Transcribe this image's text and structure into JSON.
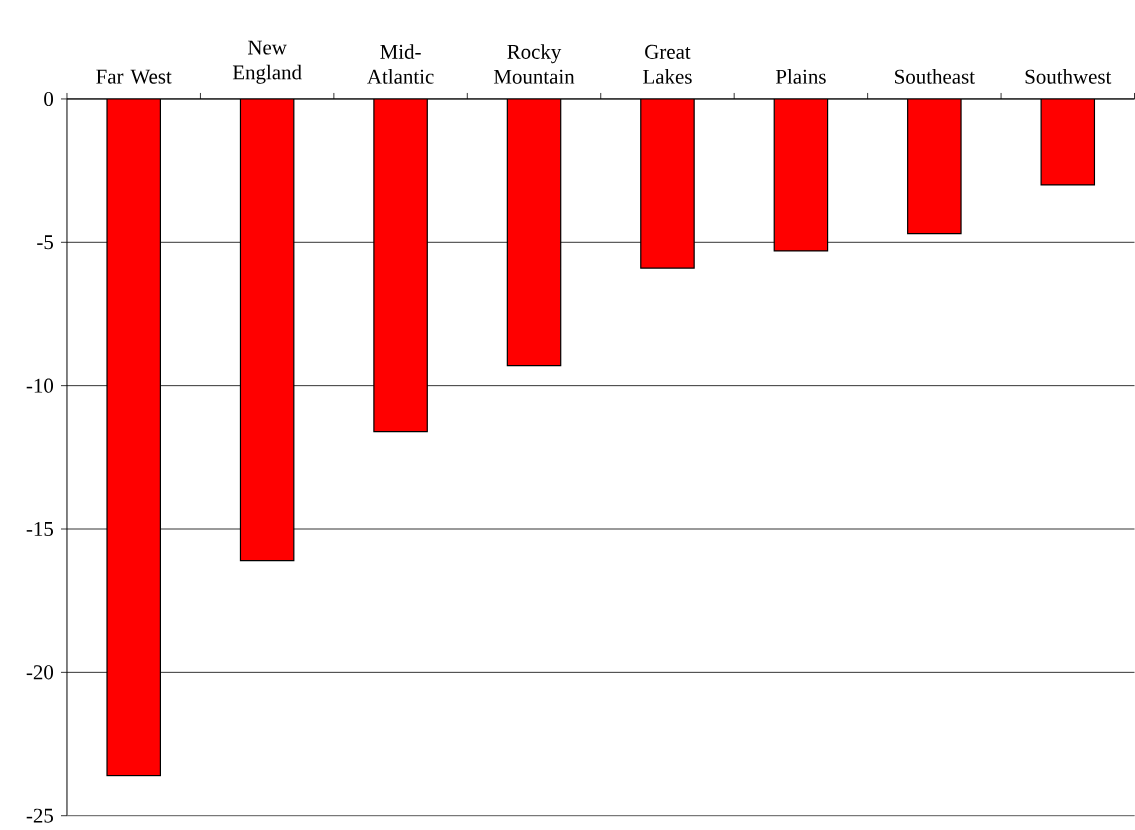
{
  "chart_data": {
    "type": "bar",
    "categories": [
      "Far West",
      "New England",
      "Mid-Atlantic",
      "Rocky Mountain",
      "Great Lakes",
      "Plains",
      "Southeast",
      "Southwest"
    ],
    "values": [
      -23.6,
      -16.1,
      -11.6,
      -9.3,
      -5.9,
      -5.3,
      -4.7,
      -3.0
    ],
    "color": "#ff0000",
    "ylim": [
      -25,
      0
    ],
    "yticks": [
      0,
      -5,
      -10,
      -15,
      -20,
      -25
    ],
    "grid": "y"
  }
}
